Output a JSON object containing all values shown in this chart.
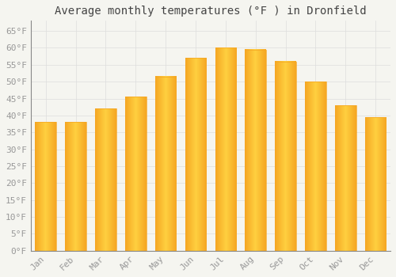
{
  "title": "Average monthly temperatures (°F ) in Dronfield",
  "months": [
    "Jan",
    "Feb",
    "Mar",
    "Apr",
    "May",
    "Jun",
    "Jul",
    "Aug",
    "Sep",
    "Oct",
    "Nov",
    "Dec"
  ],
  "values": [
    38,
    38,
    42,
    45.5,
    51.5,
    57,
    60,
    59.5,
    56,
    50,
    43,
    39.5
  ],
  "bar_color_center": "#FFD040",
  "bar_color_edge": "#F5A623",
  "background_color": "#F5F5F0",
  "plot_bg_color": "#F5F5F0",
  "grid_color": "#DDDDDD",
  "ylim": [
    0,
    68
  ],
  "yticks": [
    0,
    5,
    10,
    15,
    20,
    25,
    30,
    35,
    40,
    45,
    50,
    55,
    60,
    65
  ],
  "title_fontsize": 10,
  "tick_fontsize": 8,
  "tick_label_color": "#999999",
  "title_color": "#444444",
  "font_family": "monospace",
  "bar_width": 0.7,
  "figsize": [
    5.0,
    3.5
  ],
  "dpi": 100
}
